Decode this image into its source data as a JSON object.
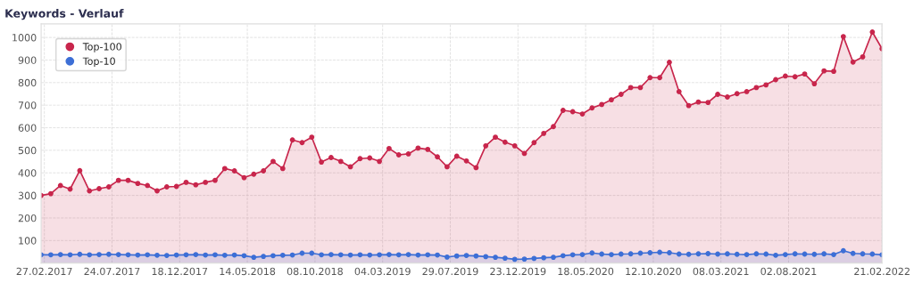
{
  "chart_data": {
    "type": "area",
    "title": "Keywords - Verlauf",
    "x": [
      "2017-02-20",
      "2017-03-13",
      "2017-04-03",
      "2017-04-24",
      "2017-05-15",
      "2017-06-05",
      "2017-06-26",
      "2017-07-17",
      "2017-08-07",
      "2017-08-28",
      "2017-09-18",
      "2017-10-09",
      "2017-10-30",
      "2017-11-20",
      "2017-12-11",
      "2018-01-01",
      "2018-01-22",
      "2018-02-12",
      "2018-03-05",
      "2018-03-26",
      "2018-04-16",
      "2018-05-07",
      "2018-05-28",
      "2018-06-18",
      "2018-07-09",
      "2018-07-30",
      "2018-08-20",
      "2018-09-10",
      "2018-10-01",
      "2018-10-22",
      "2018-11-12",
      "2018-12-03",
      "2018-12-24",
      "2019-01-14",
      "2019-02-04",
      "2019-02-25",
      "2019-03-18",
      "2019-04-08",
      "2019-04-29",
      "2019-05-20",
      "2019-06-10",
      "2019-07-01",
      "2019-07-22",
      "2019-08-12",
      "2019-09-02",
      "2019-09-23",
      "2019-10-14",
      "2019-11-04",
      "2019-11-25",
      "2019-12-16",
      "2020-01-06",
      "2020-01-27",
      "2020-02-17",
      "2020-03-09",
      "2020-03-30",
      "2020-04-20",
      "2020-05-11",
      "2020-06-01",
      "2020-06-22",
      "2020-07-13",
      "2020-08-03",
      "2020-08-24",
      "2020-09-14",
      "2020-10-05",
      "2020-10-26",
      "2020-11-16",
      "2020-12-07",
      "2020-12-28",
      "2021-01-18",
      "2021-02-08",
      "2021-03-01",
      "2021-03-22",
      "2021-04-12",
      "2021-05-03",
      "2021-05-24",
      "2021-06-14",
      "2021-07-05",
      "2021-07-26",
      "2021-08-16",
      "2021-09-06",
      "2021-09-27",
      "2021-10-18",
      "2021-11-08",
      "2021-11-29",
      "2021-12-20",
      "2022-01-10",
      "2022-01-31",
      "2022-02-21"
    ],
    "series": [
      {
        "name": "Top-100",
        "color": "#c8264c",
        "values": [
          300,
          308,
          344,
          328,
          410,
          320,
          330,
          338,
          367,
          367,
          353,
          344,
          320,
          338,
          340,
          358,
          347,
          358,
          367,
          419,
          409,
          379,
          394,
          409,
          451,
          419,
          546,
          534,
          558,
          448,
          468,
          451,
          427,
          463,
          466,
          451,
          508,
          480,
          484,
          510,
          504,
          471,
          427,
          474,
          453,
          423,
          520,
          558,
          536,
          520,
          486,
          534,
          575,
          605,
          677,
          671,
          661,
          688,
          703,
          724,
          748,
          778,
          778,
          822,
          822,
          890,
          760,
          698,
          714,
          712,
          748,
          736,
          751,
          760,
          778,
          790,
          813,
          829,
          826,
          838,
          795,
          852,
          850,
          1004,
          891,
          914,
          1024,
          950
        ]
      },
      {
        "name": "Top-10",
        "color": "#3d6fd6",
        "values": [
          37,
          37,
          38,
          37,
          39,
          37,
          38,
          39,
          38,
          37,
          36,
          37,
          35,
          34,
          36,
          37,
          38,
          36,
          37,
          35,
          36,
          33,
          26,
          30,
          33,
          35,
          36,
          44,
          44,
          37,
          38,
          37,
          36,
          37,
          36,
          37,
          38,
          37,
          38,
          36,
          37,
          36,
          27,
          32,
          34,
          32,
          29,
          26,
          22,
          17,
          18,
          21,
          24,
          26,
          33,
          37,
          38,
          45,
          40,
          38,
          40,
          41,
          44,
          46,
          48,
          46,
          40,
          39,
          41,
          42,
          40,
          41,
          39,
          38,
          41,
          40,
          35,
          38,
          41,
          40,
          39,
          41,
          38,
          55,
          43,
          41,
          40,
          37
        ]
      }
    ],
    "xlim": [
      "2017-02-20",
      "2022-02-21"
    ],
    "xticks": [
      {
        "value": "2017-02-27",
        "label": "27.02.2017"
      },
      {
        "value": "2017-07-24",
        "label": "24.07.2017"
      },
      {
        "value": "2017-12-18",
        "label": "18.12.2017"
      },
      {
        "value": "2018-05-14",
        "label": "14.05.2018"
      },
      {
        "value": "2018-10-08",
        "label": "08.10.2018"
      },
      {
        "value": "2019-03-04",
        "label": "04.03.2019"
      },
      {
        "value": "2019-07-29",
        "label": "29.07.2019"
      },
      {
        "value": "2019-12-23",
        "label": "23.12.2019"
      },
      {
        "value": "2020-05-18",
        "label": "18.05.2020"
      },
      {
        "value": "2020-10-12",
        "label": "12.10.2020"
      },
      {
        "value": "2021-03-08",
        "label": "08.03.2021"
      },
      {
        "value": "2021-08-02",
        "label": "02.08.2021"
      },
      {
        "value": "2022-02-21",
        "label": "21.02.2022"
      }
    ],
    "ylim": [
      0,
      1060
    ],
    "yticks": [
      100,
      200,
      300,
      400,
      500,
      600,
      700,
      800,
      900,
      1000
    ],
    "grid": true,
    "legend": "top left",
    "marker": "circle",
    "line_style": "solid"
  }
}
